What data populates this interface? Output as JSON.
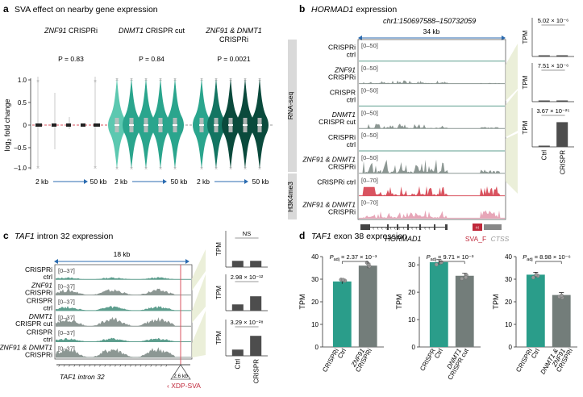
{
  "colors": {
    "teal_light": "#5cc8b0",
    "teal_mid": "#2aa58d",
    "teal_dark": "#137562",
    "teal_darkest": "#0a4a3c",
    "track_teal": "#5e9e8e",
    "track_grey": "#8c9793",
    "h3k4me3": "#e7a6b8",
    "red_line": "#d9535f",
    "bar_teal": "#2a9d8a",
    "bar_grey": "#737d7a",
    "panel_grey": "#d9d9d9",
    "olive_bg": "#e8ecd2",
    "svaf_red": "#c0283a"
  },
  "panel_a": {
    "letter": "a",
    "title": "SVA effect on nearby gene expression",
    "ylabel": "log2 fold change",
    "groups": [
      {
        "gene": "ZNF91",
        "rest": " CRISPRi",
        "p": "P = 0.83",
        "x_start": "2 kb",
        "x_end": "50 kb"
      },
      {
        "gene": "DNMT1",
        "rest": " CRISPR cut",
        "p": "P = 0.84",
        "x_start": "2 kb",
        "x_end": "50 kb"
      },
      {
        "gene": "ZNF91 & DNMT1",
        "rest": "CRISPRi",
        "p": "P = 0.0021",
        "x_start": "2 kb",
        "x_end": "50 kb"
      }
    ]
  },
  "panel_b": {
    "letter": "b",
    "title_gene": "HORMAD1",
    "title_rest": " expression",
    "coords": "chr1:150697588–150732059",
    "scale": "34 kb",
    "side_rnaseq": "RNA-seq",
    "side_h3k4me3": "H3K4me3",
    "tracks": [
      {
        "label1": "CRISPRi",
        "label2": "ctrl",
        "range": "[0–50]"
      },
      {
        "label1": "ZNF91",
        "label2": "CRISPRi",
        "range": "[0–50]"
      },
      {
        "label1": "CRISPR",
        "label2": "ctrl",
        "range": "[0–50]"
      },
      {
        "label1": "DNMT1",
        "label2": "CRISPR cut",
        "range": "[0–50]"
      },
      {
        "label1": "CRISPRi",
        "label2": "ctrl",
        "range": "[0–50]"
      },
      {
        "label1": "ZNF91 & DNMT1",
        "label2": "CRISPRi",
        "range": "[0–50]"
      },
      {
        "label1": "CRISPRi ctrl",
        "label2": "",
        "range": "[0–70]"
      },
      {
        "label1": "ZNF91 & DNMT1",
        "label2": "CRISPRi",
        "range": "[0–70]"
      }
    ],
    "gene_label": "HORMAD1",
    "svaf_label": "SVA_F",
    "ctss_label": "CTSS",
    "bar_ylabel": "TPM",
    "bar_pvals": [
      "5.02 × 10⁻⁶",
      "7.51 × 10⁻⁶",
      "3.67 × 10⁻²⁵"
    ],
    "bar_xlabels": [
      "Ctrl",
      "CRISPR"
    ]
  },
  "panel_c": {
    "letter": "c",
    "title_gene": "TAF1",
    "title_rest": " intron 32 expression",
    "scale": "18 kb",
    "tracks": [
      {
        "label1": "CRISPRi",
        "label2": "ctrl",
        "range": "[0–37]"
      },
      {
        "label1": "ZNF91",
        "label2": "CRISPRi",
        "range": "[0–37]"
      },
      {
        "label1": "CRISPR",
        "label2": "ctrl",
        "range": "[0–37]"
      },
      {
        "label1": "DNMT1",
        "label2": "CRISPR cut",
        "range": "[0–37]"
      },
      {
        "label1": "CRISPR",
        "label2": "ctrl",
        "range": "[0–37]"
      },
      {
        "label1": "ZNF91 & DNMT1",
        "label2": "CRISPRi",
        "range": "[0–37]"
      }
    ],
    "gene_label": "TAF1 intron 32",
    "sva_size": "2.6 kb",
    "sva_label": "XDP-SVA",
    "bar_ylabel": "TPM",
    "bar_pvals": [
      "NS",
      "2.98 × 10⁻¹²",
      "3.29 × 10⁻²⁸"
    ],
    "bar_xlabels": [
      "Ctrl",
      "CRISPR"
    ]
  },
  "panel_d": {
    "letter": "d",
    "title_gene": "TAF1",
    "title_rest": " exon 38 expression",
    "ylabel": "TPM",
    "charts": [
      {
        "padj": "= 2.37 × 10⁻³",
        "ticks": [
          "0",
          "10",
          "20",
          "30",
          "40"
        ],
        "xlabels": [
          [
            "CRISPRi",
            "Ctrl"
          ],
          [
            "ZNF91",
            "CRISPRi"
          ]
        ]
      },
      {
        "padj": "= 9.71 × 10⁻³",
        "ticks": [
          "0",
          "10",
          "20",
          "30"
        ],
        "xlabels": [
          [
            "CRISPR",
            "Ctrl"
          ],
          [
            "DNMT1",
            "CRISPR cut"
          ]
        ]
      },
      {
        "padj": "= 8.98 × 10⁻⁶",
        "ticks": [
          "0",
          "10",
          "20",
          "30",
          "40"
        ],
        "xlabels": [
          [
            "CRISPRi",
            "Ctrl"
          ],
          [
            "DNMT1 &",
            "ZNF91",
            "CRISPRi"
          ]
        ]
      }
    ]
  },
  "chart_data": [
    {
      "type": "bar",
      "panel": "d-1",
      "categories": [
        "CRISPRi Ctrl",
        "ZNF91 CRISPRi"
      ],
      "values": [
        29,
        36
      ],
      "ylim": [
        0,
        40
      ],
      "ylabel": "TPM"
    },
    {
      "type": "bar",
      "panel": "d-2",
      "categories": [
        "CRISPR Ctrl",
        "DNMT1 CRISPR cut"
      ],
      "values": [
        31,
        26
      ],
      "ylim": [
        0,
        33
      ],
      "ylabel": "TPM"
    },
    {
      "type": "bar",
      "panel": "d-3",
      "categories": [
        "CRISPRi Ctrl",
        "DNMT1 & ZNF91 CRISPRi"
      ],
      "values": [
        32,
        23
      ],
      "ylim": [
        0,
        40
      ],
      "ylabel": "TPM"
    },
    {
      "type": "bar",
      "panel": "b-insets",
      "categories": [
        "Ctrl",
        "CRISPR"
      ],
      "series": [
        {
          "values": [
            1,
            2
          ]
        },
        {
          "values": [
            1,
            2
          ]
        },
        {
          "values": [
            1,
            45
          ]
        }
      ]
    },
    {
      "type": "bar",
      "panel": "c-insets",
      "categories": [
        "Ctrl",
        "CRISPR"
      ],
      "series": [
        {
          "values": [
            1,
            1
          ]
        },
        {
          "values": [
            1,
            2.3
          ]
        },
        {
          "values": [
            1,
            3.2
          ]
        }
      ]
    }
  ]
}
